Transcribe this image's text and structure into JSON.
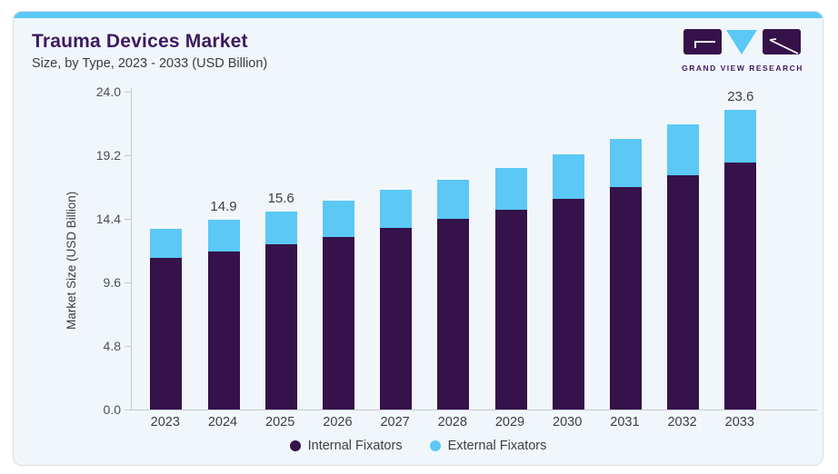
{
  "header": {
    "title": "Trauma Devices Market",
    "subtitle": "Size, by Type, 2023 - 2033 (USD Billion)"
  },
  "logo": {
    "text": "GRAND VIEW RESEARCH"
  },
  "colors": {
    "internal_fixators": "#351249",
    "external_fixators": "#5bc8f5",
    "accent_strip": "#5bc8f5",
    "title_text": "#3d1a60",
    "card_background": "#f1f6fa",
    "card_border": "#d9dee4",
    "axis_line": "#c3c9d2",
    "axis_text": "#4b4f58",
    "label_text": "#3c3f45"
  },
  "chart_data": {
    "type": "bar",
    "stacked": true,
    "title": "Trauma Devices Market",
    "subtitle": "Size, by Type, 2023 - 2033 (USD Billion)",
    "xlabel": "",
    "ylabel": "Market Size (USD Billion)",
    "ylim": [
      0,
      24
    ],
    "yticks": [
      "0.0",
      "4.8",
      "9.6",
      "14.4",
      "19.2",
      "24.0"
    ],
    "grid": false,
    "legend_position": "bottom",
    "categories": [
      "2023",
      "2024",
      "2025",
      "2026",
      "2027",
      "2028",
      "2029",
      "2030",
      "2031",
      "2032",
      "2033"
    ],
    "series": [
      {
        "name": "Internal Fixators",
        "color_key": "internal_fixators",
        "values": [
          11.9,
          12.4,
          13.0,
          13.6,
          14.3,
          15.0,
          15.7,
          16.6,
          17.5,
          18.4,
          19.4
        ]
      },
      {
        "name": "External Fixators",
        "color_key": "external_fixators",
        "values": [
          2.3,
          2.5,
          2.6,
          2.8,
          3.0,
          3.1,
          3.3,
          3.5,
          3.8,
          4.0,
          4.2
        ]
      }
    ],
    "totals": [
      14.2,
      14.9,
      15.6,
      16.4,
      17.3,
      18.1,
      19.0,
      20.1,
      21.3,
      22.4,
      23.6
    ],
    "visible_total_labels": {
      "2024": "14.9",
      "2025": "15.6",
      "2033": "23.6"
    },
    "legend": [
      "Internal Fixators",
      "External Fixators"
    ]
  }
}
